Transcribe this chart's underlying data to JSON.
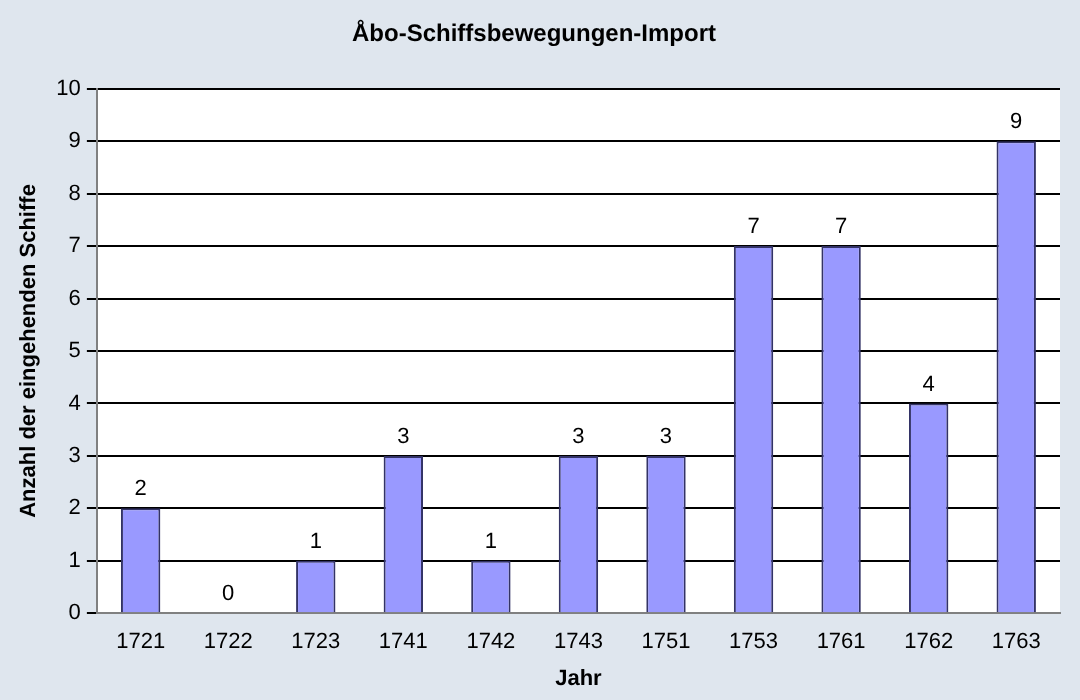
{
  "chart_data": {
    "type": "bar",
    "title": "Åbo-Schiffsbewegungen-Import",
    "xlabel": "Jahr",
    "ylabel": "Anzahl der eingehenden Schiffe",
    "categories": [
      "1721",
      "1722",
      "1723",
      "1741",
      "1742",
      "1743",
      "1751",
      "1753",
      "1761",
      "1762",
      "1763"
    ],
    "values": [
      2,
      0,
      1,
      3,
      1,
      3,
      3,
      7,
      7,
      4,
      9
    ],
    "color": "#9999ff",
    "ylim": [
      0,
      10
    ],
    "yticks": [
      0,
      1,
      2,
      3,
      4,
      5,
      6,
      7,
      8,
      9,
      10
    ],
    "grid": "y",
    "data_labels": true,
    "legend": false
  }
}
